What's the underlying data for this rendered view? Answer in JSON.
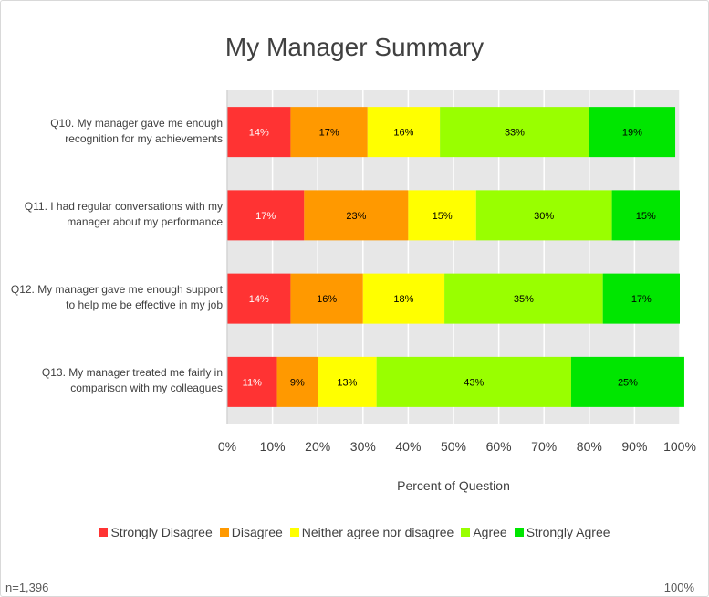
{
  "chart_data": {
    "type": "bar",
    "orientation": "horizontal",
    "stacked": "100%",
    "title": "My Manager Summary",
    "xlabel": "Percent of Question",
    "ylabel": "",
    "xlim": [
      0,
      100
    ],
    "xticks": [
      "0%",
      "10%",
      "20%",
      "30%",
      "40%",
      "50%",
      "60%",
      "70%",
      "80%",
      "90%",
      "100%"
    ],
    "categories": [
      [
        "Q10. My manager gave me enough",
        "recognition for my achievements"
      ],
      [
        "Q11. I had regular conversations with my",
        "manager about my performance"
      ],
      [
        "Q12. My manager gave me enough support",
        "to help me be effective in my job"
      ],
      [
        "Q13. My manager treated me fairly in",
        "comparison with my colleagues"
      ]
    ],
    "series": [
      {
        "name": "Strongly Disagree",
        "color": "#ff3333",
        "values": [
          14,
          17,
          14,
          11
        ],
        "labels": [
          "14%",
          "17%",
          "14%",
          "11%"
        ]
      },
      {
        "name": "Disagree",
        "color": "#ff9900",
        "values": [
          17,
          23,
          16,
          9
        ],
        "labels": [
          "17%",
          "23%",
          "16%",
          "9%"
        ]
      },
      {
        "name": "Neither agree nor disagree",
        "color": "#ffff00",
        "values": [
          16,
          15,
          18,
          13
        ],
        "labels": [
          "16%",
          "15%",
          "18%",
          "13%"
        ]
      },
      {
        "name": "Agree",
        "color": "#99ff00",
        "values": [
          33,
          30,
          35,
          43
        ],
        "labels": [
          "33%",
          "30%",
          "35%",
          "43%"
        ]
      },
      {
        "name": "Strongly Agree",
        "color": "#00e600",
        "values": [
          19,
          15,
          17,
          25
        ],
        "labels": [
          "19%",
          "15%",
          "17%",
          "25%"
        ]
      }
    ],
    "grid": true,
    "legend_position": "bottom"
  },
  "footer": {
    "left": "n=1,396",
    "right": "100%"
  }
}
